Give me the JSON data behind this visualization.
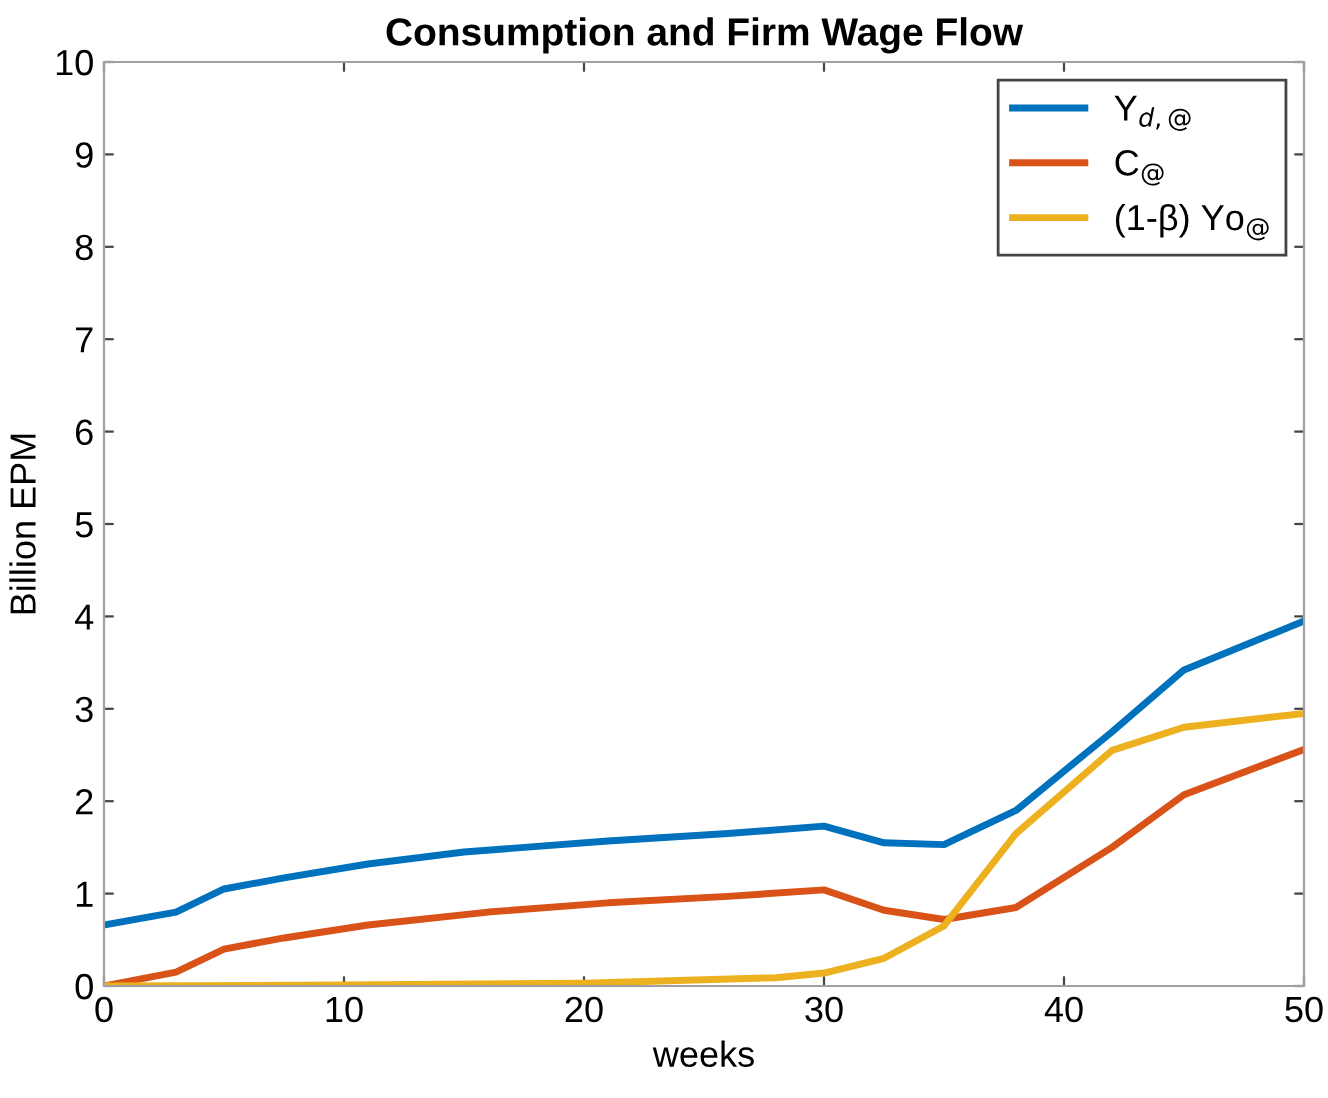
{
  "chart_data": {
    "type": "line",
    "title": "Consumption and Firm Wage Flow",
    "xlabel": "weeks",
    "ylabel": "Billion EPM",
    "xlim": [
      0,
      50
    ],
    "xticks": [
      0,
      10,
      20,
      30,
      40,
      50
    ],
    "ylim": [
      0,
      10
    ],
    "yticks": [
      0,
      1,
      2,
      3,
      4,
      5,
      6,
      7,
      8,
      9,
      10
    ],
    "grid": false,
    "legend": "top right",
    "marker": "none",
    "line_style": "solid",
    "series": [
      {
        "name": "Y$_{d,@}$",
        "color": "#0072bd",
        "x": [
          0,
          3,
          5,
          7.5,
          11,
          15,
          21,
          26,
          30,
          32.5,
          35,
          38,
          42,
          45,
          50
        ],
        "values": [
          0.66,
          0.8,
          1.05,
          1.17,
          1.32,
          1.45,
          1.57,
          1.65,
          1.73,
          1.55,
          1.53,
          1.9,
          2.75,
          3.42,
          3.95
        ]
      },
      {
        "name": "C$_{@}$",
        "color": "#d95319",
        "x": [
          0,
          3,
          5,
          7.5,
          11,
          16,
          21,
          26,
          30,
          32.5,
          35,
          38,
          42,
          45,
          50
        ],
        "values": [
          0,
          0.15,
          0.4,
          0.52,
          0.66,
          0.8,
          0.9,
          0.97,
          1.04,
          0.82,
          0.72,
          0.85,
          1.5,
          2.07,
          2.56
        ]
      },
      {
        "name": "(1-β) Yo$_{@}$",
        "color": "#edb120",
        "x": [
          0,
          10,
          20,
          28,
          30,
          32.5,
          35,
          38,
          42,
          45,
          50
        ],
        "values": [
          0,
          0.01,
          0.03,
          0.09,
          0.14,
          0.3,
          0.65,
          1.65,
          2.55,
          2.8,
          2.95
        ]
      }
    ]
  }
}
